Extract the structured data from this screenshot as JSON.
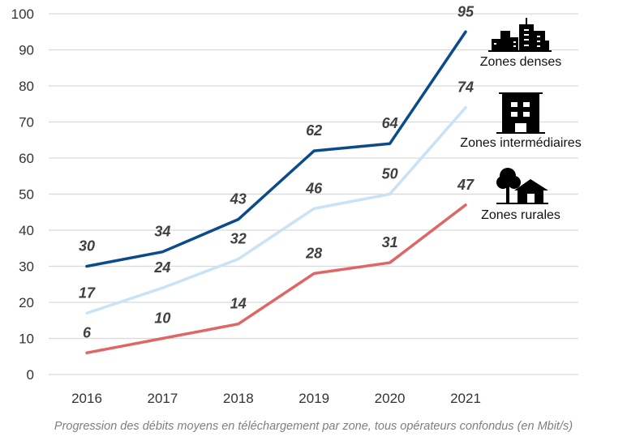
{
  "chart_data": {
    "type": "line",
    "title": "",
    "xlabel": "",
    "ylabel": "",
    "x": [
      "2016",
      "2017",
      "2018",
      "2019",
      "2020",
      "2021"
    ],
    "ylim": [
      0,
      100
    ],
    "yticks": [
      0,
      10,
      20,
      30,
      40,
      50,
      60,
      70,
      80,
      90,
      100
    ],
    "grid": true,
    "series": [
      {
        "name": "Zones denses",
        "color": "#0b4a8b",
        "icon": "city-skyline-icon",
        "values": [
          30,
          34,
          43,
          62,
          64,
          95
        ]
      },
      {
        "name": "Zones intermédiaires",
        "color": "#c9e2f5",
        "icon": "building-icon",
        "values": [
          17,
          24,
          32,
          46,
          50,
          74
        ]
      },
      {
        "name": "Zones rurales",
        "color": "#e06666",
        "icon": "house-tree-icon",
        "values": [
          6,
          10,
          14,
          28,
          31,
          47
        ]
      }
    ],
    "legend_placement": "right, next to line ends"
  },
  "caption": "Progression des débits moyens en téléchargement par zone, tous opérateurs confondus (en Mbit/s)"
}
